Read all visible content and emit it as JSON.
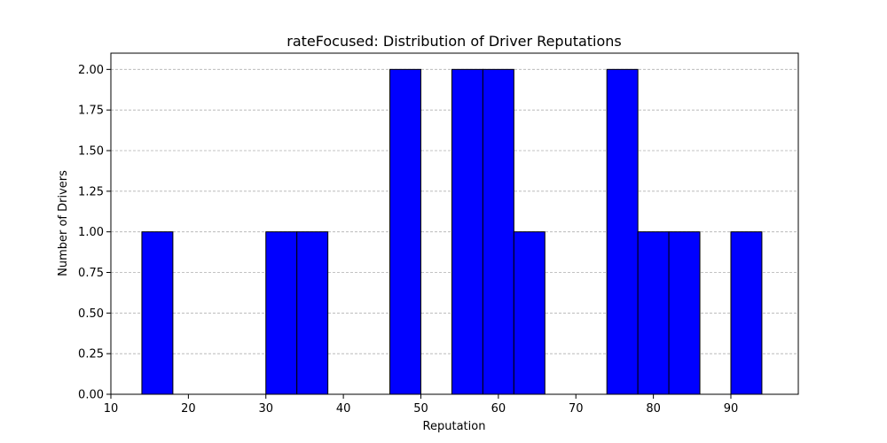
{
  "chart_data": {
    "type": "bar",
    "title": "rateFocused: Distribution of Driver Reputations",
    "xlabel": "Reputation",
    "ylabel": "Number of Drivers",
    "xlim": [
      10,
      98.7
    ],
    "ylim": [
      0,
      2.1
    ],
    "x_ticks": [
      10,
      20,
      30,
      40,
      50,
      60,
      70,
      80,
      90
    ],
    "y_ticks": [
      "0.00",
      "0.25",
      "0.50",
      "0.75",
      "1.00",
      "1.25",
      "1.50",
      "1.75",
      "2.00"
    ],
    "grid": "y",
    "bar_color": "#0000ff",
    "edge_color": "#000000",
    "bins": [
      {
        "start": 14.0,
        "end": 18.0,
        "count": 1
      },
      {
        "start": 30.0,
        "end": 34.0,
        "count": 1
      },
      {
        "start": 34.0,
        "end": 38.0,
        "count": 1
      },
      {
        "start": 46.0,
        "end": 50.0,
        "count": 2
      },
      {
        "start": 54.0,
        "end": 58.0,
        "count": 2
      },
      {
        "start": 58.0,
        "end": 62.0,
        "count": 2
      },
      {
        "start": 62.0,
        "end": 66.0,
        "count": 1
      },
      {
        "start": 74.0,
        "end": 78.0,
        "count": 2
      },
      {
        "start": 78.0,
        "end": 82.0,
        "count": 1
      },
      {
        "start": 82.0,
        "end": 86.0,
        "count": 1
      },
      {
        "start": 90.0,
        "end": 94.0,
        "count": 1
      }
    ]
  }
}
